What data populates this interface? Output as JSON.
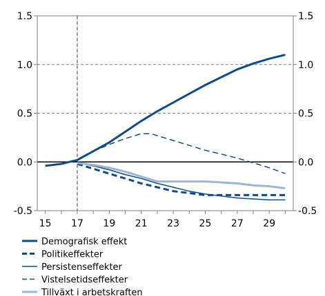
{
  "chart_data": {
    "type": "line",
    "title": "",
    "xlabel": "",
    "ylabel": "",
    "xlim": [
      14.5,
      30.5
    ],
    "ylim": [
      -0.5,
      1.5
    ],
    "x_ticks": [
      15,
      17,
      19,
      21,
      23,
      25,
      27,
      29
    ],
    "x_tick_labels": [
      "15",
      "17",
      "19",
      "21",
      "23",
      "25",
      "27",
      "29"
    ],
    "y_ticks": [
      -0.5,
      0.0,
      0.5,
      1.0,
      1.5
    ],
    "y_tick_labels": [
      "-0.5",
      "0.0",
      "0.5",
      "1.0",
      "1.5"
    ],
    "y_axis_right": true,
    "grid": "dashed horizontal",
    "vertical_marker_x": 17,
    "zero_line": true,
    "legend_position": "bottom-left",
    "series": [
      {
        "name": "Demografisk effekt",
        "color": "#0d4a8f",
        "style": "solid-thick",
        "x": [
          15,
          16,
          17,
          18,
          19,
          20,
          21,
          22,
          23,
          24,
          25,
          26,
          27,
          28,
          29,
          30
        ],
        "values": [
          -0.04,
          -0.02,
          0.02,
          0.11,
          0.2,
          0.31,
          0.42,
          0.52,
          0.61,
          0.7,
          0.79,
          0.87,
          0.95,
          1.01,
          1.06,
          1.1
        ]
      },
      {
        "name": "Politikeffekter",
        "color": "#0d4a8f",
        "style": "dashed-thick",
        "x": [
          17,
          18,
          19,
          20,
          21,
          22,
          23,
          24,
          25,
          26,
          27,
          28,
          29,
          30
        ],
        "values": [
          -0.02,
          -0.07,
          -0.12,
          -0.17,
          -0.22,
          -0.26,
          -0.3,
          -0.32,
          -0.34,
          -0.34,
          -0.34,
          -0.34,
          -0.34,
          -0.34
        ]
      },
      {
        "name": "Persistenseffekter",
        "color": "#0d4a8f",
        "style": "solid-thin",
        "x": [
          17,
          18,
          19,
          20,
          21,
          22,
          23,
          24,
          25,
          26,
          27,
          28,
          29,
          30
        ],
        "values": [
          -0.01,
          -0.04,
          -0.08,
          -0.13,
          -0.17,
          -0.22,
          -0.26,
          -0.3,
          -0.33,
          -0.35,
          -0.37,
          -0.38,
          -0.39,
          -0.39
        ]
      },
      {
        "name": "Vistelsetidseffekter",
        "color": "#0d4a8f",
        "style": "dashed-thin",
        "x": [
          17,
          18,
          19,
          20,
          21,
          21.6,
          23,
          24,
          25,
          26,
          27,
          28,
          29,
          30
        ],
        "values": [
          0.02,
          0.11,
          0.18,
          0.24,
          0.29,
          0.29,
          0.22,
          0.17,
          0.12,
          0.08,
          0.04,
          -0.01,
          -0.06,
          -0.12
        ]
      },
      {
        "name": "Tillväxt i arbetskraften",
        "color": "#9db6d6",
        "style": "solid-thick",
        "x": [
          17,
          18,
          19,
          20,
          21,
          22,
          23,
          24,
          25,
          26,
          27,
          28,
          29,
          30
        ],
        "values": [
          -0.01,
          -0.03,
          -0.06,
          -0.1,
          -0.15,
          -0.2,
          -0.2,
          -0.2,
          -0.2,
          -0.21,
          -0.22,
          -0.24,
          -0.25,
          -0.27
        ]
      }
    ]
  }
}
